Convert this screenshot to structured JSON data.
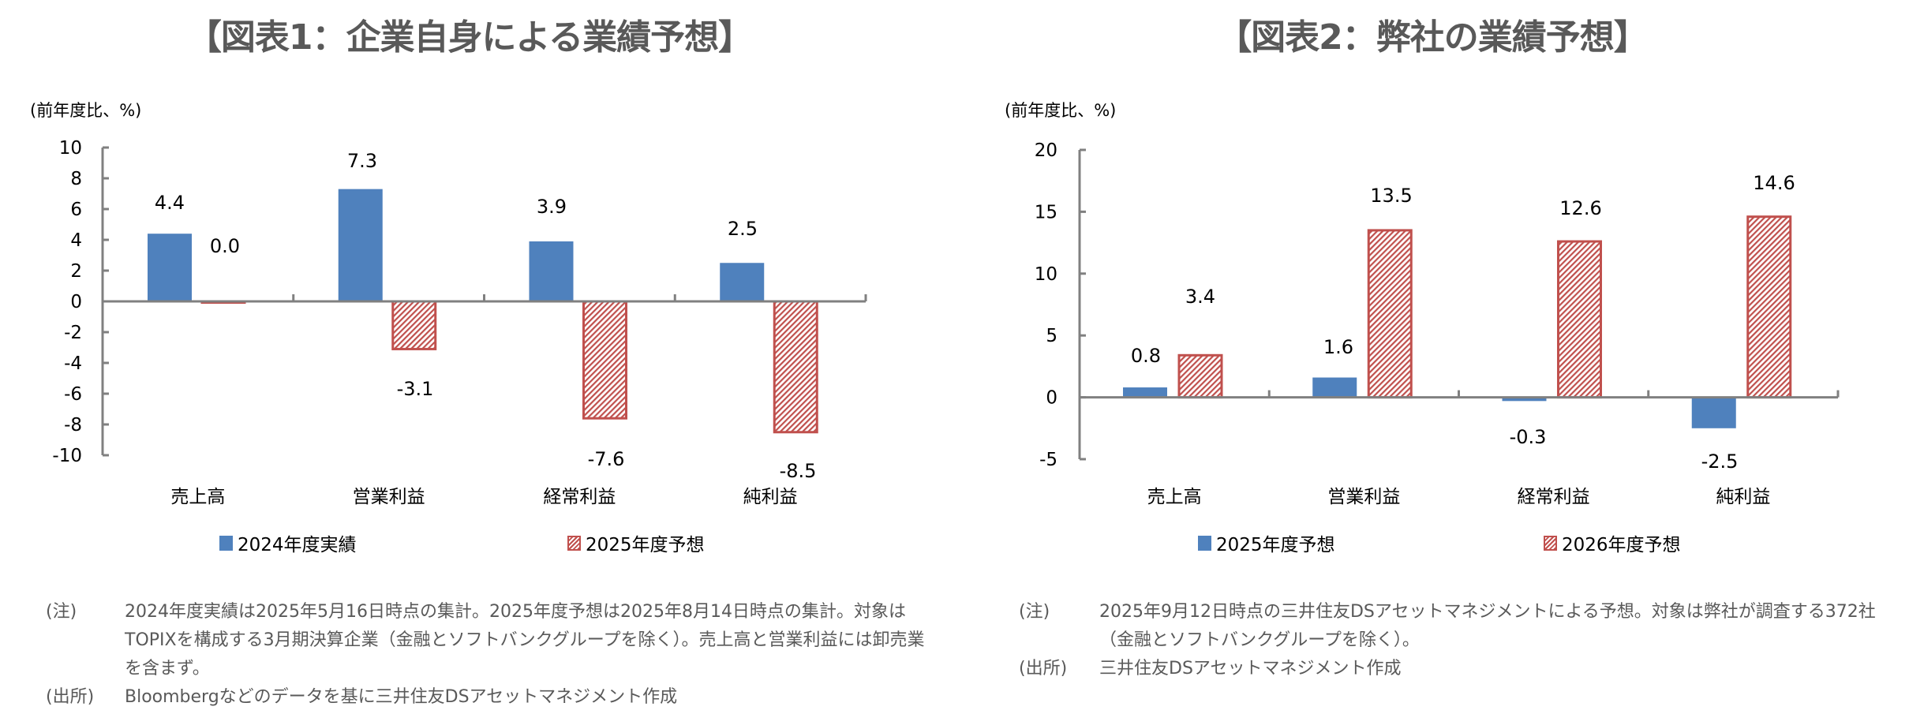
{
  "colors": {
    "series1": "#4F81BD",
    "series2_border": "#C0504D",
    "axis": "#808080",
    "title": "#595959",
    "notes": "#595959"
  },
  "chart_data": [
    {
      "type": "bar",
      "title": "【図表1：企業自身による業績予想】",
      "ylabel": "(前年度比、%)",
      "xlabel": "",
      "categories": [
        "売上高",
        "営業利益",
        "経常利益",
        "純利益"
      ],
      "ylim": [
        -10,
        10
      ],
      "yticks": [
        10,
        8,
        6,
        4,
        2,
        0,
        -2,
        -4,
        -6,
        -8,
        -10
      ],
      "legend_position": "bottom",
      "grid": false,
      "series": [
        {
          "name": "2024年度実績",
          "values": [
            4.4,
            7.3,
            3.9,
            2.5
          ],
          "labels": [
            "4.4",
            "7.3",
            "3.9",
            "2.5"
          ],
          "style": "solid"
        },
        {
          "name": "2025年度予想",
          "values": [
            0.0,
            -3.1,
            -7.6,
            -8.5
          ],
          "labels": [
            "0.0",
            "-3.1",
            "-7.6",
            "-8.5"
          ],
          "style": "hatched"
        }
      ]
    },
    {
      "type": "bar",
      "title": "【図表2：弊社の業績予想】",
      "ylabel": "(前年度比、%)",
      "xlabel": "",
      "categories": [
        "売上高",
        "営業利益",
        "経常利益",
        "純利益"
      ],
      "ylim": [
        -5,
        20
      ],
      "yticks": [
        20,
        15,
        10,
        5,
        0,
        -5
      ],
      "legend_position": "bottom",
      "grid": false,
      "series": [
        {
          "name": "2025年度予想",
          "values": [
            0.8,
            1.6,
            -0.3,
            -2.5
          ],
          "labels": [
            "0.8",
            "1.6",
            "-0.3",
            "-2.5"
          ],
          "style": "solid"
        },
        {
          "name": "2026年度予想",
          "values": [
            3.4,
            13.5,
            12.6,
            14.6
          ],
          "labels": [
            "3.4",
            "13.5",
            "12.6",
            "14.6"
          ],
          "style": "hatched"
        }
      ]
    }
  ],
  "notes": [
    {
      "rows": [
        {
          "key": "(注)",
          "text": "2024年度実績は2025年5月16日時点の集計。2025年度予想は2025年8月14日時点の集計。対象はTOPIXを構成する3月期決算企業（金融とソフトバンクグループを除く）。売上高と営業利益には卸売業を含まず。"
        },
        {
          "key": "(出所)",
          "text": "Bloombergなどのデータを基に三井住友DSアセットマネジメント作成"
        }
      ]
    },
    {
      "rows": [
        {
          "key": "(注)",
          "text": "2025年9月12日時点の三井住友DSアセットマネジメントによる予想。対象は弊社が調査する372社（金融とソフトバンクグループを除く）。"
        },
        {
          "key": "(出所)",
          "text": "三井住友DSアセットマネジメント作成"
        }
      ]
    }
  ]
}
